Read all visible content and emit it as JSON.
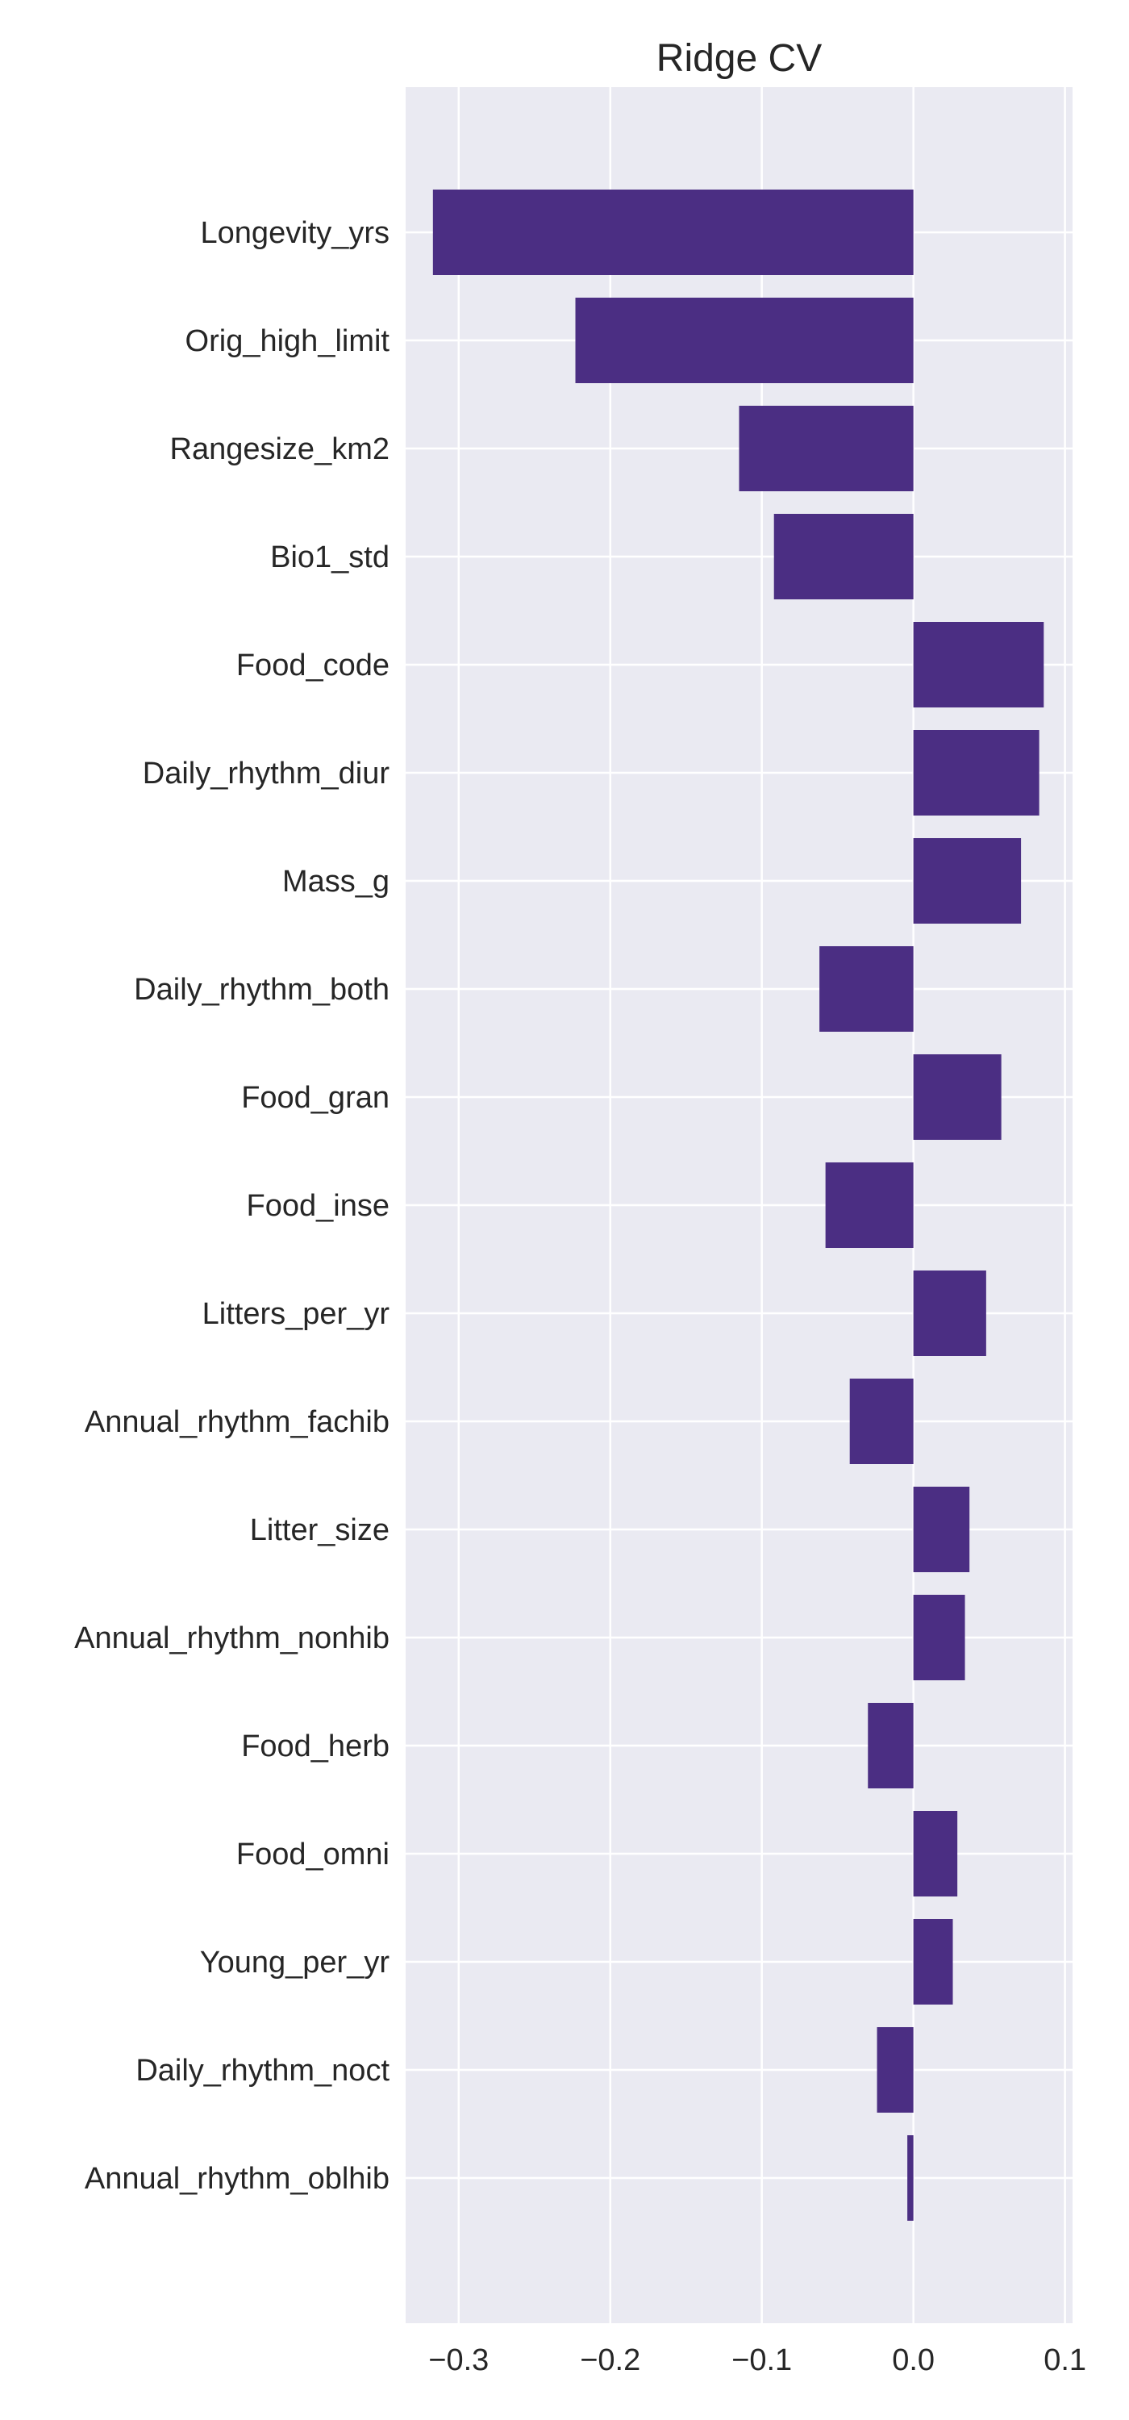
{
  "chart_data": {
    "type": "bar",
    "orientation": "horizontal",
    "title": "Ridge CV",
    "xlabel": "",
    "ylabel": "",
    "xlim": [
      -0.335,
      0.105
    ],
    "xticks": [
      -0.3,
      -0.2,
      -0.1,
      0.0,
      0.1
    ],
    "xtick_labels": [
      "−0.3",
      "−0.2",
      "−0.1",
      "0.0",
      "0.1"
    ],
    "grid": true,
    "legend": "none",
    "bar_color": "#4b2e83",
    "background_color": "#eaeaf2",
    "grid_color": "#ffffff",
    "categories": [
      "Longevity_yrs",
      "Orig_high_limit",
      "Rangesize_km2",
      "Bio1_std",
      "Food_code",
      "Daily_rhythm_diur",
      "Mass_g",
      "Daily_rhythm_both",
      "Food_gran",
      "Food_inse",
      "Litters_per_yr",
      "Annual_rhythm_fachib",
      "Litter_size",
      "Annual_rhythm_nonhib",
      "Food_herb",
      "Food_omni",
      "Young_per_yr",
      "Daily_rhythm_noct",
      "Annual_rhythm_oblhib"
    ],
    "values": [
      -0.317,
      -0.223,
      -0.115,
      -0.092,
      0.086,
      0.083,
      0.071,
      -0.062,
      0.058,
      -0.058,
      0.048,
      -0.042,
      0.037,
      0.034,
      -0.03,
      0.029,
      0.026,
      -0.024,
      -0.004
    ]
  }
}
